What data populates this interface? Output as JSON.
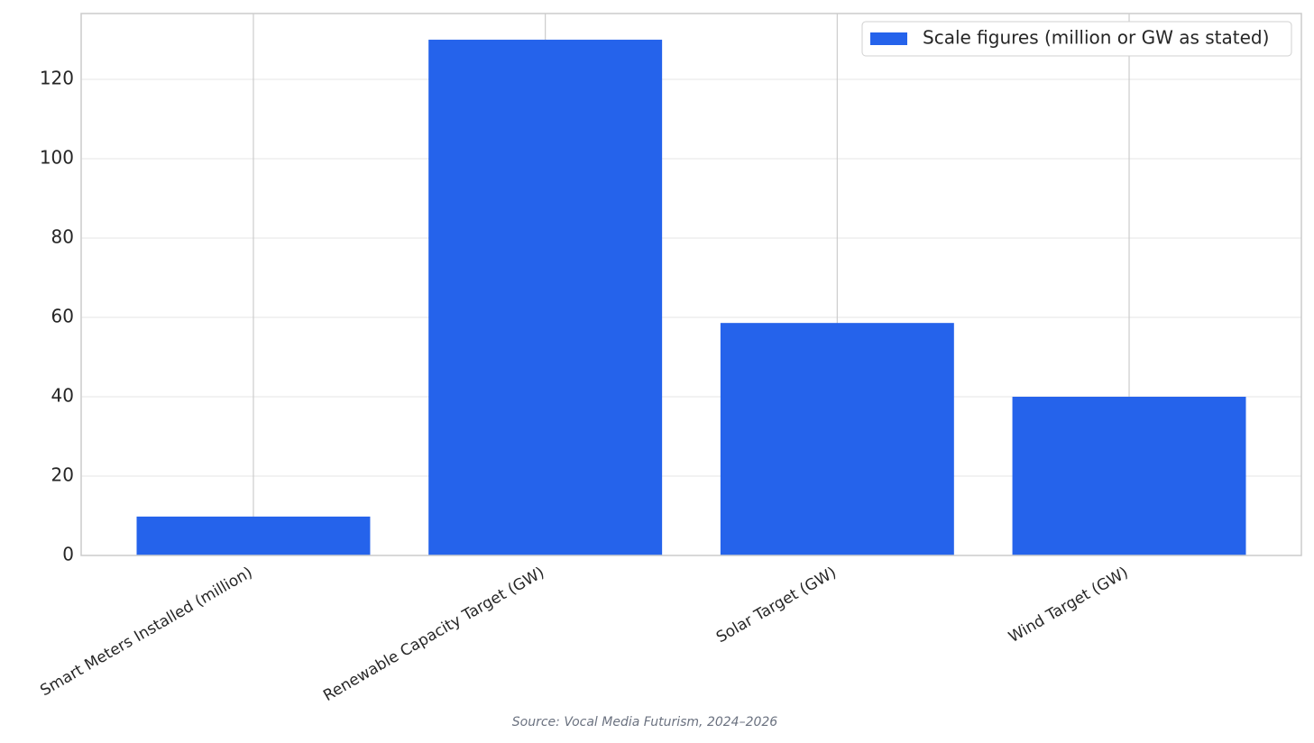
{
  "chart_data": {
    "type": "bar",
    "categories": [
      "Smart Meters Installed (million)",
      "Renewable Capacity Target (GW)",
      "Solar Target (GW)",
      "Wind Target (GW)"
    ],
    "series": [
      {
        "name": "Scale figures (million or GW as stated)",
        "color": "#2563eb",
        "values": [
          9.8,
          130,
          58.6,
          40
        ]
      }
    ],
    "ylim": [
      0,
      136.6
    ],
    "yticks": [
      0,
      20,
      40,
      60,
      80,
      100,
      120
    ],
    "grid": true,
    "legend": "upper right",
    "source": "Source: Vocal Media Futurism, 2024–2026"
  }
}
